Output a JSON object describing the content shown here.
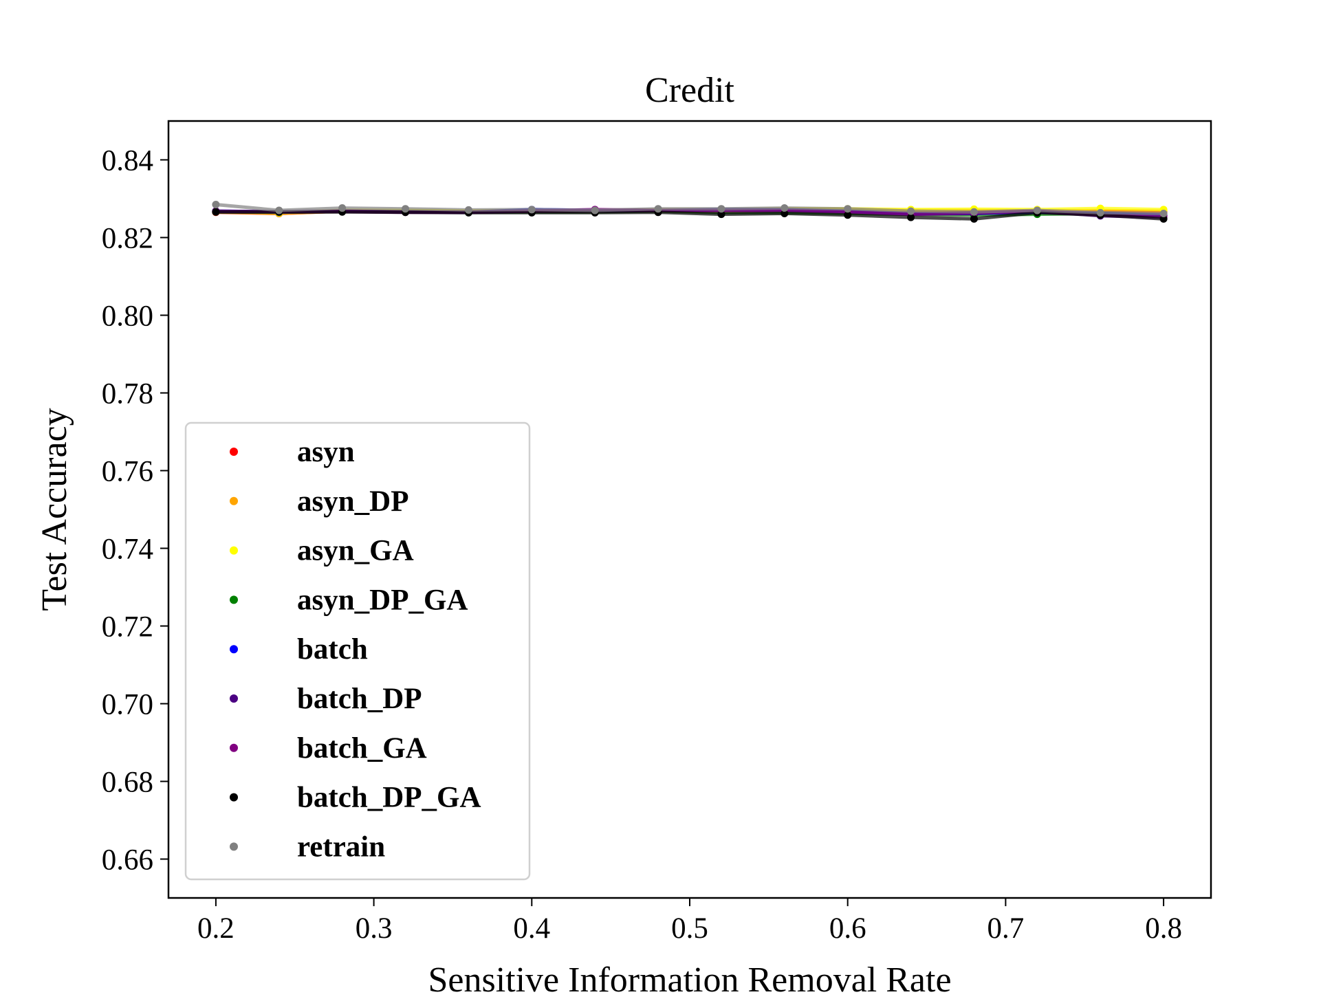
{
  "chart_data": {
    "type": "line",
    "title": "Credit",
    "xlabel": "Sensitive Information Removal Rate",
    "ylabel": "Test Accuracy",
    "xlim": [
      0.17,
      0.83
    ],
    "ylim": [
      0.65,
      0.85
    ],
    "xticks": [
      0.2,
      0.3,
      0.4,
      0.5,
      0.6,
      0.7,
      0.8
    ],
    "xtick_labels": [
      "0.2",
      "0.3",
      "0.4",
      "0.5",
      "0.6",
      "0.7",
      "0.8"
    ],
    "yticks": [
      0.66,
      0.68,
      0.7,
      0.72,
      0.74,
      0.76,
      0.78,
      0.8,
      0.82,
      0.84
    ],
    "ytick_labels": [
      "0.66",
      "0.68",
      "0.70",
      "0.72",
      "0.74",
      "0.76",
      "0.78",
      "0.80",
      "0.82",
      "0.84"
    ],
    "x": [
      0.2,
      0.24,
      0.28,
      0.32,
      0.36,
      0.4,
      0.44,
      0.48,
      0.52,
      0.56,
      0.6,
      0.64,
      0.68,
      0.72,
      0.76,
      0.8
    ],
    "legend_location": "lower-left",
    "series": [
      {
        "name": "asyn",
        "color": "#ff0000",
        "values": [
          0.8265,
          0.8262,
          0.8268,
          0.8266,
          0.8266,
          0.8268,
          0.8267,
          0.8269,
          0.8268,
          0.827,
          0.8268,
          0.8266,
          0.8268,
          0.8267,
          0.8268,
          0.8266
        ]
      },
      {
        "name": "asyn_DP",
        "color": "#ffa500",
        "values": [
          0.8266,
          0.8262,
          0.8268,
          0.8267,
          0.8267,
          0.8268,
          0.8268,
          0.827,
          0.827,
          0.8272,
          0.8272,
          0.827,
          0.827,
          0.8269,
          0.827,
          0.8268
        ]
      },
      {
        "name": "asyn_GA",
        "color": "#ffff00",
        "values": [
          0.8268,
          0.8264,
          0.827,
          0.827,
          0.8268,
          0.827,
          0.827,
          0.8271,
          0.8272,
          0.8274,
          0.8274,
          0.8272,
          0.8273,
          0.8272,
          0.8275,
          0.8272
        ]
      },
      {
        "name": "asyn_DP_GA",
        "color": "#008000",
        "values": [
          0.8266,
          0.8265,
          0.8267,
          0.8266,
          0.8265,
          0.8266,
          0.8266,
          0.8268,
          0.8264,
          0.8264,
          0.8262,
          0.826,
          0.8258,
          0.826,
          0.8262,
          0.8256
        ]
      },
      {
        "name": "batch",
        "color": "#0000ff",
        "values": [
          0.8268,
          0.8266,
          0.8268,
          0.8266,
          0.8265,
          0.8272,
          0.827,
          0.827,
          0.8272,
          0.8272,
          0.8268,
          0.8262,
          0.8262,
          0.8266,
          0.8262,
          0.8258
        ]
      },
      {
        "name": "batch_DP",
        "color": "#4b0082",
        "values": [
          0.8268,
          0.8266,
          0.8268,
          0.8266,
          0.8265,
          0.8268,
          0.8268,
          0.827,
          0.827,
          0.827,
          0.8266,
          0.826,
          0.8262,
          0.8268,
          0.8256,
          0.8252
        ]
      },
      {
        "name": "batch_GA",
        "color": "#800080",
        "values": [
          0.8267,
          0.8266,
          0.8267,
          0.8265,
          0.8265,
          0.8268,
          0.8272,
          0.827,
          0.827,
          0.827,
          0.8266,
          0.826,
          0.8264,
          0.8268,
          0.8258,
          0.8255
        ]
      },
      {
        "name": "batch_DP_GA",
        "color": "#000000",
        "values": [
          0.8266,
          0.8266,
          0.8266,
          0.8265,
          0.8264,
          0.8264,
          0.8264,
          0.8265,
          0.826,
          0.8262,
          0.8258,
          0.8252,
          0.8248,
          0.8264,
          0.8258,
          0.8248
        ]
      },
      {
        "name": "retrain",
        "color": "#808080",
        "values": [
          0.8285,
          0.827,
          0.8276,
          0.8274,
          0.8271,
          0.8272,
          0.827,
          0.8274,
          0.8274,
          0.8276,
          0.8274,
          0.8268,
          0.8266,
          0.827,
          0.8264,
          0.8262
        ]
      }
    ]
  }
}
